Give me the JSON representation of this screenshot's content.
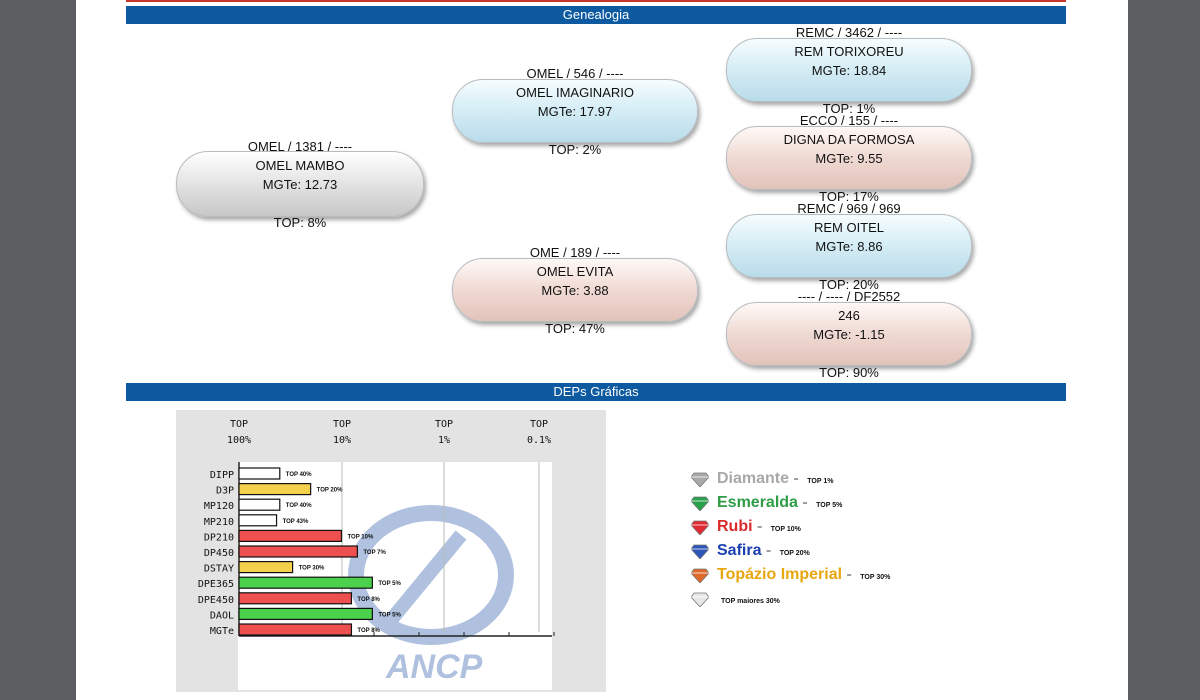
{
  "sections": {
    "genealogia": "Genealogia",
    "deps": "DEPs Gráficas"
  },
  "pedigree": {
    "animal": {
      "line1": "OMEL / 1381 / ----",
      "name": "OMEL MAMBO",
      "mgte_label": "MGTe: 12.73",
      "top_label": "TOP: 8%"
    },
    "sire": {
      "line1": "OMEL / 546 / ----",
      "name": "OMEL IMAGINARIO",
      "mgte_label": "MGTe: 17.97",
      "top_label": "TOP: 2%"
    },
    "dam": {
      "line1": "OME / 189 / ----",
      "name": "OMEL EVITA",
      "mgte_label": "MGTe: 3.88",
      "top_label": "TOP: 47%"
    },
    "sire_sire": {
      "line1": "REMC / 3462 / ----",
      "name": "REM TORIXOREU",
      "mgte_label": "MGTe: 18.84",
      "top_label": "TOP: 1%"
    },
    "sire_dam": {
      "line1": "ECCO / 155 / ----",
      "name": "DIGNA DA FORMOSA",
      "mgte_label": "MGTe: 9.55",
      "top_label": "TOP: 17%"
    },
    "dam_sire": {
      "line1": "REMC / 969 / 969",
      "name": "REM OITEL",
      "mgte_label": "MGTe: 8.86",
      "top_label": "TOP: 20%"
    },
    "dam_dam": {
      "line1": "---- / ---- / DF2552",
      "name": "246",
      "mgte_label": "MGTe: -1.15",
      "top_label": "TOP: 90%"
    }
  },
  "colors": {
    "male": "#cfe8f2",
    "female": "#ecd3cc",
    "neutral": "#dcdcdc",
    "header_bar": "#0d5aa0",
    "white": "#ffffff",
    "yellow": "#f3d14a",
    "red": "#ee5050",
    "green": "#4cd14c"
  },
  "chart_data": {
    "type": "bar",
    "orientation": "horizontal",
    "scale_labels": [
      {
        "top": "TOP",
        "bottom": "100%"
      },
      {
        "top": "TOP",
        "bottom": "10%"
      },
      {
        "top": "TOP",
        "bottom": "1%"
      },
      {
        "top": "TOP",
        "bottom": "0.1%"
      }
    ],
    "categories": [
      "DIPP",
      "D3P",
      "MP120",
      "MP210",
      "DP210",
      "DP450",
      "DSTAY",
      "DPE365",
      "DPE450",
      "DAOL",
      "MGTe"
    ],
    "values": [
      40,
      20,
      40,
      43,
      10,
      7,
      30,
      5,
      8,
      5,
      8
    ],
    "value_labels": [
      "TOP 40%",
      "TOP 20%",
      "TOP 40%",
      "TOP 43%",
      "TOP 10%",
      "TOP 7%",
      "TOP 30%",
      "TOP 5%",
      "TOP 8%",
      "TOP 5%",
      "TOP 8%"
    ],
    "bar_colors": [
      "white",
      "yellow",
      "white",
      "white",
      "red",
      "red",
      "yellow",
      "green",
      "red",
      "green",
      "red"
    ],
    "value_unit": "TOP %",
    "watermark": "ANCP"
  },
  "legend": [
    {
      "name": "Diamante",
      "sep": " - ",
      "top": "TOP 1%",
      "color": "#a8a8a8",
      "gem": "#a9a9a9",
      "icon": "diamond-gem-icon"
    },
    {
      "name": "Esmeralda",
      "sep": " - ",
      "top": "TOP 5%",
      "color": "#2e9d46",
      "gem": "#2aa04a",
      "icon": "emerald-gem-icon"
    },
    {
      "name": "Rubi",
      "sep": " - ",
      "top": "TOP 10%",
      "color": "#d92b2b",
      "gem": "#e02b35",
      "icon": "ruby-gem-icon"
    },
    {
      "name": "Safira",
      "sep": " - ",
      "top": "TOP 20%",
      "color": "#1b3fb0",
      "gem": "#2d56b8",
      "icon": "sapphire-gem-icon"
    },
    {
      "name": "Topázio Imperial",
      "sep": " - ",
      "top": "TOP 30%",
      "color": "#e8a60f",
      "gem": "#dd6a2a",
      "icon": "topaz-gem-icon"
    },
    {
      "name": "",
      "sep": "",
      "top": "TOP maiores 30%",
      "color": "#111111",
      "gem": "#e6e6e6",
      "icon": "plain-gem-icon"
    }
  ]
}
